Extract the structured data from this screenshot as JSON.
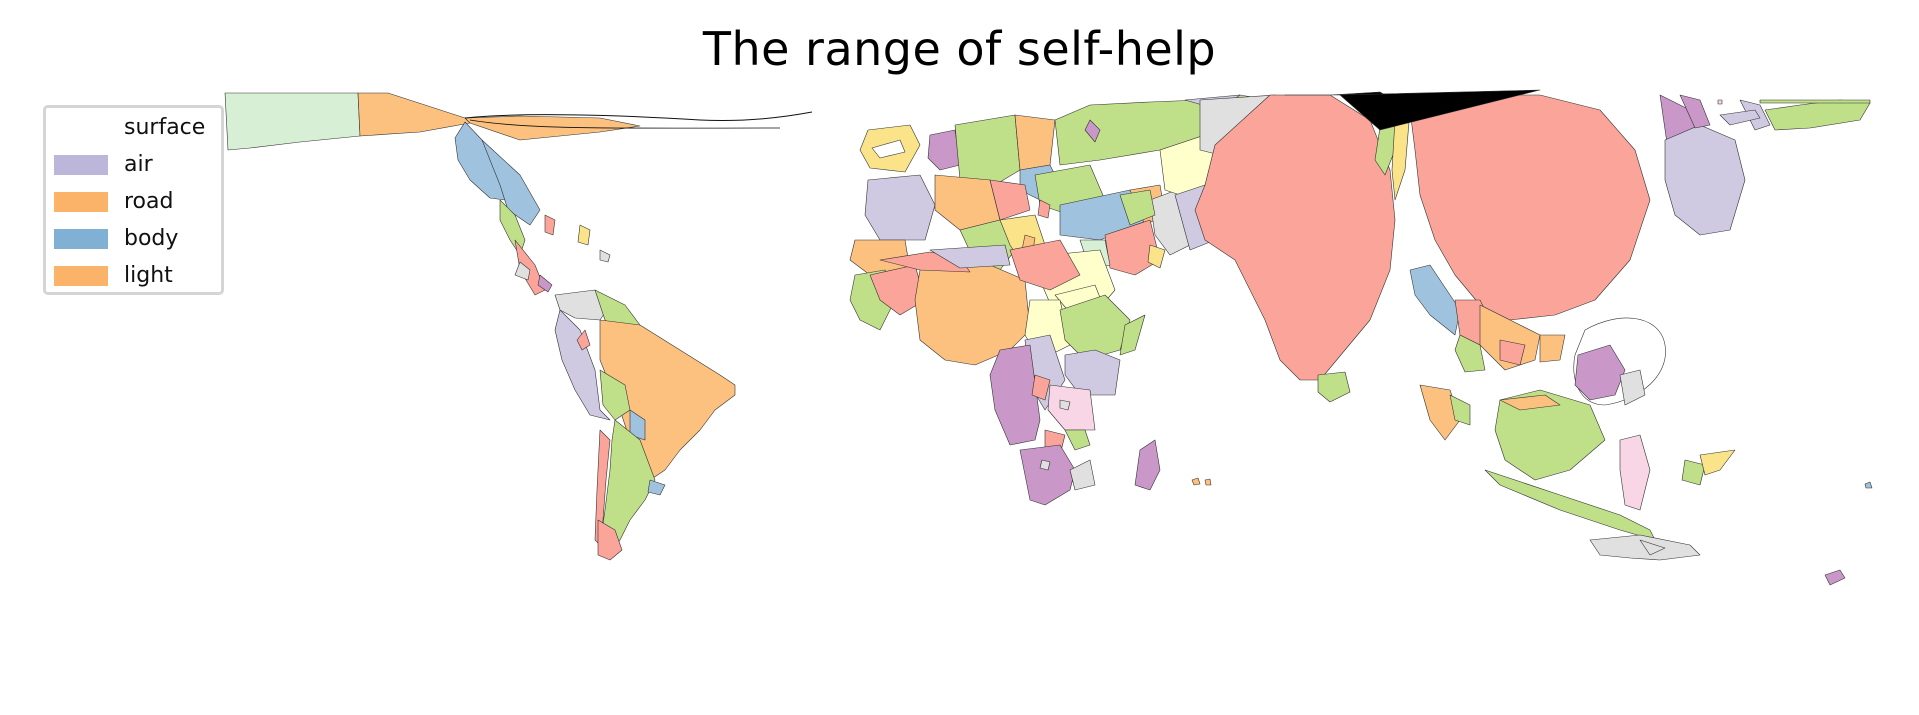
{
  "title": "The range of self-help",
  "legend": {
    "items": [
      {
        "label": "surface",
        "color": "#ffffff"
      },
      {
        "label": "air",
        "color": "#bcb7da"
      },
      {
        "label": "road",
        "color": "#fbb36a"
      },
      {
        "label": "body",
        "color": "#80b0d4"
      },
      {
        "label": "light",
        "color": "#fbb36a"
      }
    ]
  },
  "map": {
    "type": "cartogram-choropleth",
    "palette": [
      "#fba49a",
      "#bfdf88",
      "#cfcae2",
      "#fcc07f",
      "#9fc3de",
      "#c997c8",
      "#e0e0e0",
      "#fbe38a",
      "#d7efd4",
      "#f8d6e6",
      "#ffffcc"
    ],
    "outline_color": "#222222"
  }
}
